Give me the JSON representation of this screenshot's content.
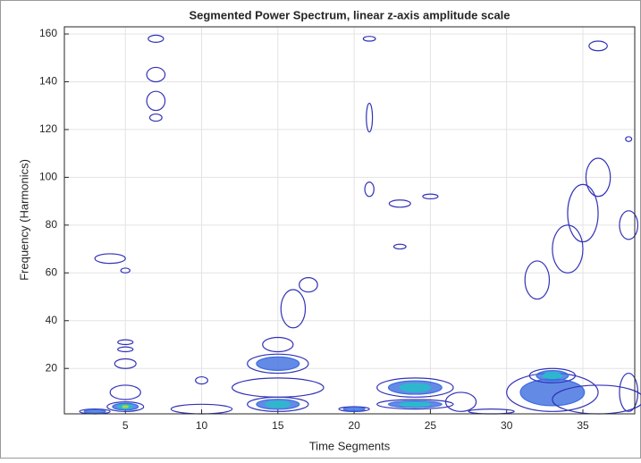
{
  "chart_data": {
    "type": "contour",
    "title": "Segmented Power Spectrum, linear z-axis amplitude scale",
    "x_label": "Time Segments",
    "y_label": "Frequency (Harmonics)",
    "xlim": [
      1,
      38.4
    ],
    "ylim": [
      1,
      163
    ],
    "xticks": [
      5,
      10,
      15,
      20,
      25,
      30,
      35
    ],
    "yticks": [
      20,
      40,
      60,
      80,
      100,
      120,
      140,
      160
    ],
    "grid": true,
    "level_colors": [
      "#3232b8",
      "#3c6ee0",
      "#22c0c8",
      "#b4d43c"
    ],
    "contours": {
      "x": [
        3,
        5,
        5,
        5,
        5,
        5,
        4,
        5,
        7,
        7,
        7,
        7,
        10,
        10,
        15,
        15,
        15,
        15,
        16,
        17,
        20,
        21,
        21,
        21,
        24,
        24,
        23,
        25,
        23,
        27,
        29,
        32,
        33,
        33,
        34,
        35,
        36,
        36,
        36,
        38,
        38,
        38
      ],
      "y": [
        2,
        4,
        10,
        22,
        28,
        31,
        66,
        61,
        158,
        143,
        132,
        125,
        15,
        3,
        5,
        12,
        22,
        30,
        45,
        55,
        3,
        158,
        125,
        95,
        12,
        5,
        71,
        92,
        89,
        6,
        2,
        57,
        10,
        17,
        70,
        85,
        100,
        7,
        155,
        80,
        10,
        116
      ],
      "dx": [
        1,
        1.2,
        1,
        0.7,
        0.5,
        0.5,
        1,
        0.3,
        0.5,
        0.6,
        0.6,
        0.4,
        0.4,
        2,
        2,
        3,
        2,
        1,
        0.8,
        0.6,
        1,
        0.4,
        0.2,
        0.3,
        2.5,
        2.5,
        0.4,
        0.5,
        0.7,
        1,
        1.5,
        0.8,
        3,
        1.5,
        1,
        1,
        0.8,
        3,
        0.6,
        0.6,
        0.6,
        0.2
      ],
      "dy": [
        1,
        2,
        3,
        2,
        1,
        1,
        2,
        1,
        1.5,
        3,
        4,
        1.5,
        1.5,
        2,
        3,
        4,
        4,
        3,
        8,
        3,
        1,
        1,
        6,
        3,
        4,
        2,
        1,
        1,
        1.5,
        4,
        1,
        8,
        8,
        3,
        10,
        12,
        8,
        6,
        2,
        6,
        8,
        1
      ],
      "level": [
        2,
        4,
        1,
        1,
        1,
        1,
        1,
        1,
        1,
        1,
        1,
        1,
        1,
        1,
        3,
        1,
        2,
        1,
        1,
        1,
        2,
        1,
        1,
        1,
        3,
        3,
        1,
        1,
        1,
        1,
        1,
        1,
        2,
        3,
        1,
        1,
        1,
        1,
        1,
        1,
        1,
        1
      ]
    }
  }
}
